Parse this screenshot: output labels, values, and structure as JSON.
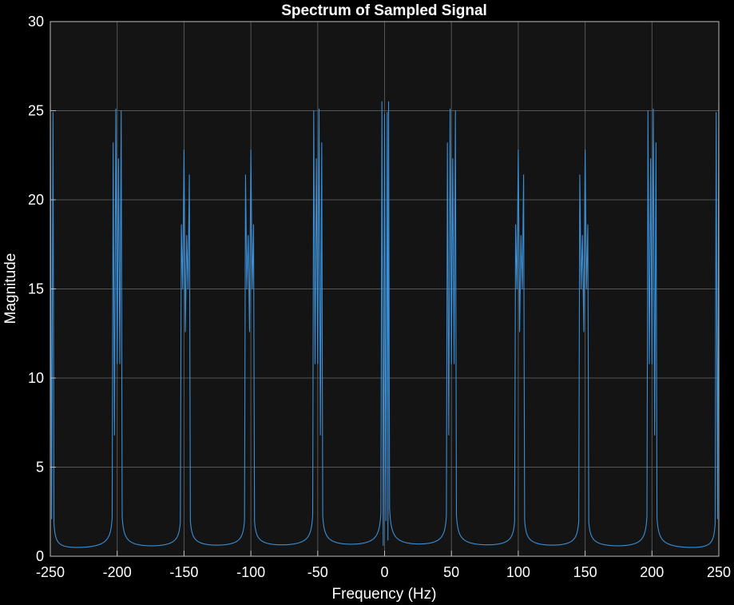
{
  "chart_data": {
    "type": "line",
    "title": "Spectrum of Sampled Signal",
    "xlabel": "Frequency (Hz)",
    "ylabel": "Magnitude",
    "xlim": [
      -250,
      250
    ],
    "ylim": [
      0,
      30
    ],
    "xticks": [
      -250,
      -200,
      -150,
      -100,
      -50,
      0,
      50,
      100,
      150,
      200,
      250
    ],
    "yticks": [
      0,
      5,
      10,
      15,
      20,
      25,
      30
    ],
    "grid": true,
    "background": "#141414",
    "page_background": "#000000",
    "line_color": "#3a8fd6",
    "grid_color": "#555555",
    "series": [
      {
        "peaks": [
          {
            "x": -250,
            "y": 25.4
          },
          {
            "x": -248,
            "y": 24.9
          },
          {
            "x": -203,
            "y": 23.2
          },
          {
            "x": -201,
            "y": 25.1
          },
          {
            "x": -199,
            "y": 22.3
          },
          {
            "x": -197,
            "y": 25.0
          },
          {
            "x": -152,
            "y": 18.6
          },
          {
            "x": -150,
            "y": 22.8
          },
          {
            "x": -148,
            "y": 18.0
          },
          {
            "x": -146,
            "y": 21.4
          },
          {
            "x": -104,
            "y": 21.4
          },
          {
            "x": -102,
            "y": 18.0
          },
          {
            "x": -100,
            "y": 22.8
          },
          {
            "x": -98,
            "y": 18.6
          },
          {
            "x": -53,
            "y": 25.0
          },
          {
            "x": -51,
            "y": 22.3
          },
          {
            "x": -49,
            "y": 25.1
          },
          {
            "x": -47,
            "y": 23.2
          },
          {
            "x": -2,
            "y": 25.5
          },
          {
            "x": 0,
            "y": 24.8
          },
          {
            "x": 2,
            "y": 24.9
          },
          {
            "x": 3,
            "y": 25.5
          },
          {
            "x": 47,
            "y": 23.2
          },
          {
            "x": 49,
            "y": 25.1
          },
          {
            "x": 51,
            "y": 22.3
          },
          {
            "x": 53,
            "y": 25.0
          },
          {
            "x": 98,
            "y": 18.6
          },
          {
            "x": 100,
            "y": 22.8
          },
          {
            "x": 102,
            "y": 18.0
          },
          {
            "x": 104,
            "y": 21.4
          },
          {
            "x": 146,
            "y": 21.4
          },
          {
            "x": 148,
            "y": 18.0
          },
          {
            "x": 150,
            "y": 22.8
          },
          {
            "x": 152,
            "y": 18.6
          },
          {
            "x": 197,
            "y": 25.0
          },
          {
            "x": 199,
            "y": 22.3
          },
          {
            "x": 201,
            "y": 25.1
          },
          {
            "x": 203,
            "y": 23.2
          },
          {
            "x": 248,
            "y": 24.9
          },
          {
            "x": 250,
            "y": 25.4
          }
        ],
        "dips": [
          {
            "x": -249,
            "y": 2.1
          },
          {
            "x": -202,
            "y": 6.8
          },
          {
            "x": -200,
            "y": 10.8
          },
          {
            "x": -198,
            "y": 10.8
          },
          {
            "x": -151,
            "y": 15.0
          },
          {
            "x": -149,
            "y": 12.6
          },
          {
            "x": -147,
            "y": 15.0
          },
          {
            "x": -103,
            "y": 15.0
          },
          {
            "x": -101,
            "y": 12.6
          },
          {
            "x": -99,
            "y": 15.0
          },
          {
            "x": -52,
            "y": 10.8
          },
          {
            "x": -50,
            "y": 10.8
          },
          {
            "x": -48,
            "y": 6.8
          },
          {
            "x": -1,
            "y": 0.6
          },
          {
            "x": 1,
            "y": 2.0
          },
          {
            "x": 2.5,
            "y": 0.9
          },
          {
            "x": 48,
            "y": 6.8
          },
          {
            "x": 50,
            "y": 10.8
          },
          {
            "x": 52,
            "y": 10.8
          },
          {
            "x": 99,
            "y": 15.0
          },
          {
            "x": 101,
            "y": 12.6
          },
          {
            "x": 103,
            "y": 15.0
          },
          {
            "x": 147,
            "y": 15.0
          },
          {
            "x": 149,
            "y": 12.6
          },
          {
            "x": 151,
            "y": 15.0
          },
          {
            "x": 198,
            "y": 10.8
          },
          {
            "x": 200,
            "y": 10.8
          },
          {
            "x": 202,
            "y": 6.8
          },
          {
            "x": 249,
            "y": 2.1
          }
        ],
        "floor_minimum": 0.02
      }
    ]
  }
}
